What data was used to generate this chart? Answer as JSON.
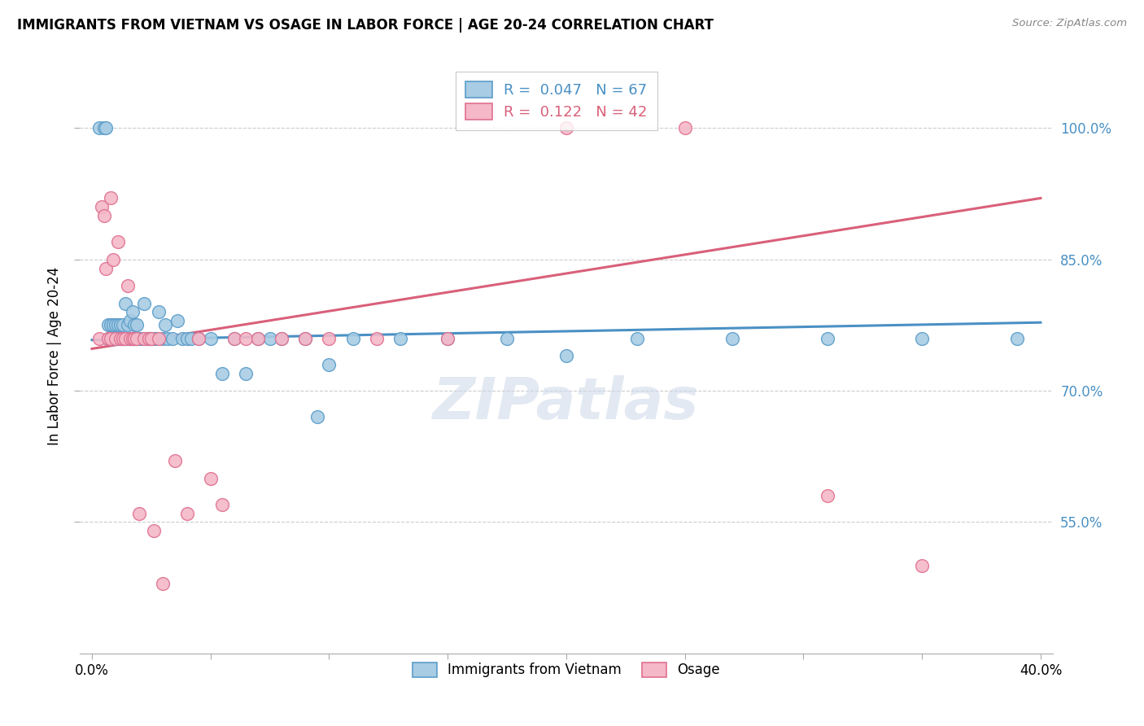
{
  "title": "IMMIGRANTS FROM VIETNAM VS OSAGE IN LABOR FORCE | AGE 20-24 CORRELATION CHART",
  "source": "Source: ZipAtlas.com",
  "ylabel": "In Labor Force | Age 20-24",
  "yticks": [
    0.55,
    0.7,
    0.85,
    1.0
  ],
  "ytick_labels": [
    "55.0%",
    "70.0%",
    "85.0%",
    "100.0%"
  ],
  "xticks": [
    0.0,
    0.05,
    0.1,
    0.15,
    0.2,
    0.25,
    0.3,
    0.35,
    0.4
  ],
  "xlim": [
    -0.005,
    0.405
  ],
  "ylim": [
    0.4,
    1.08
  ],
  "legend_R_blue": "0.047",
  "legend_N_blue": "67",
  "legend_R_pink": "0.122",
  "legend_N_pink": "42",
  "blue_color": "#a8cce4",
  "pink_color": "#f4b8c8",
  "blue_edge_color": "#5b9dc9",
  "pink_edge_color": "#e07090",
  "blue_line_color": "#4a90c4",
  "pink_line_color": "#d9607a",
  "watermark": "ZIPatlas",
  "blue_scatter_x": [
    0.003,
    0.005,
    0.006,
    0.007,
    0.007,
    0.008,
    0.008,
    0.009,
    0.009,
    0.01,
    0.01,
    0.011,
    0.011,
    0.012,
    0.012,
    0.013,
    0.013,
    0.014,
    0.014,
    0.015,
    0.015,
    0.016,
    0.016,
    0.017,
    0.017,
    0.018,
    0.018,
    0.019,
    0.019,
    0.02,
    0.021,
    0.022,
    0.023,
    0.024,
    0.025,
    0.026,
    0.027,
    0.028,
    0.03,
    0.031,
    0.032,
    0.034,
    0.036,
    0.038,
    0.04,
    0.042,
    0.045,
    0.05,
    0.055,
    0.06,
    0.065,
    0.07,
    0.075,
    0.08,
    0.09,
    0.095,
    0.1,
    0.11,
    0.13,
    0.15,
    0.175,
    0.2,
    0.23,
    0.27,
    0.31,
    0.35,
    0.39
  ],
  "blue_scatter_y": [
    1.0,
    1.0,
    1.0,
    0.76,
    0.775,
    0.775,
    0.76,
    0.775,
    0.76,
    0.775,
    0.76,
    0.76,
    0.775,
    0.76,
    0.775,
    0.76,
    0.775,
    0.76,
    0.8,
    0.76,
    0.775,
    0.76,
    0.78,
    0.76,
    0.79,
    0.76,
    0.775,
    0.76,
    0.775,
    0.76,
    0.76,
    0.8,
    0.76,
    0.76,
    0.76,
    0.76,
    0.76,
    0.79,
    0.76,
    0.775,
    0.76,
    0.76,
    0.78,
    0.76,
    0.76,
    0.76,
    0.76,
    0.76,
    0.72,
    0.76,
    0.72,
    0.76,
    0.76,
    0.76,
    0.76,
    0.67,
    0.73,
    0.76,
    0.76,
    0.76,
    0.76,
    0.74,
    0.76,
    0.76,
    0.76,
    0.76,
    0.76
  ],
  "pink_scatter_x": [
    0.003,
    0.004,
    0.005,
    0.006,
    0.007,
    0.008,
    0.008,
    0.009,
    0.01,
    0.011,
    0.012,
    0.013,
    0.014,
    0.015,
    0.016,
    0.017,
    0.018,
    0.019,
    0.02,
    0.022,
    0.024,
    0.025,
    0.026,
    0.028,
    0.03,
    0.035,
    0.04,
    0.045,
    0.05,
    0.055,
    0.06,
    0.065,
    0.07,
    0.08,
    0.09,
    0.1,
    0.12,
    0.15,
    0.2,
    0.25,
    0.31,
    0.35
  ],
  "pink_scatter_y": [
    0.76,
    0.91,
    0.9,
    0.84,
    0.76,
    0.76,
    0.92,
    0.85,
    0.76,
    0.87,
    0.76,
    0.76,
    0.76,
    0.82,
    0.76,
    0.76,
    0.76,
    0.76,
    0.56,
    0.76,
    0.76,
    0.76,
    0.54,
    0.76,
    0.48,
    0.62,
    0.56,
    0.76,
    0.6,
    0.57,
    0.76,
    0.76,
    0.76,
    0.76,
    0.76,
    0.76,
    0.76,
    0.76,
    1.0,
    1.0,
    0.58,
    0.5
  ],
  "blue_trend_x": [
    0.0,
    0.4
  ],
  "blue_trend_y": [
    0.758,
    0.778
  ],
  "pink_trend_x": [
    0.0,
    0.4
  ],
  "pink_trend_y": [
    0.748,
    0.92
  ]
}
